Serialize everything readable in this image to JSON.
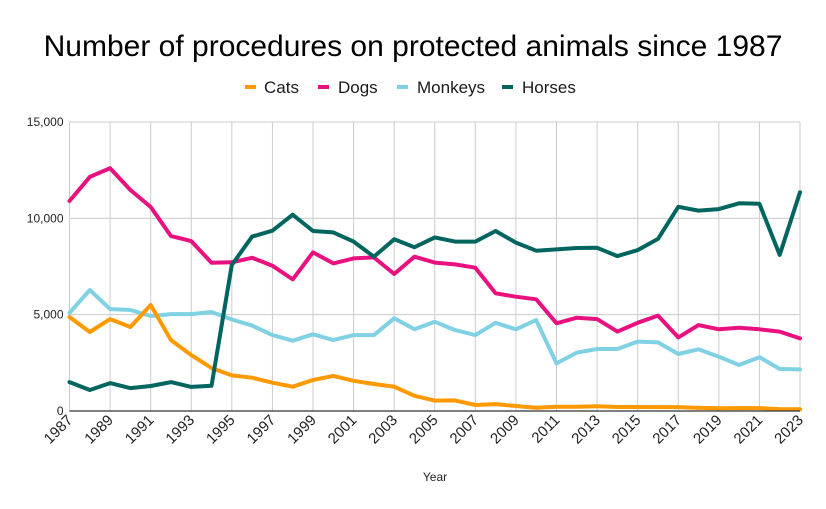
{
  "chart_data": {
    "type": "line",
    "title": "Number of procedures on protected animals since 1987",
    "xlabel": "Year",
    "ylabel": "",
    "ylim": [
      0,
      15000
    ],
    "yticks": [
      0,
      5000,
      10000,
      15000
    ],
    "ytick_labels": [
      "0",
      "5,000",
      "10,000",
      "15,000"
    ],
    "x": [
      1987,
      1988,
      1989,
      1990,
      1991,
      1992,
      1993,
      1994,
      1995,
      1996,
      1997,
      1998,
      1999,
      2000,
      2001,
      2002,
      2003,
      2004,
      2005,
      2006,
      2007,
      2008,
      2009,
      2010,
      2011,
      2012,
      2013,
      2014,
      2015,
      2016,
      2017,
      2018,
      2019,
      2020,
      2021,
      2022,
      2023
    ],
    "xtick_labels": [
      "1987",
      "1989",
      "1991",
      "1993",
      "1995",
      "1997",
      "1999",
      "2001",
      "2003",
      "2005",
      "2007",
      "2009",
      "2011",
      "2013",
      "2015",
      "2017",
      "2019",
      "2021",
      "2023"
    ],
    "grid": true,
    "legend_position": "top",
    "series": [
      {
        "name": "Cats",
        "color": "#ff9900",
        "values": [
          4880,
          4100,
          4770,
          4360,
          5500,
          3680,
          2900,
          2230,
          1850,
          1730,
          1470,
          1260,
          1610,
          1820,
          1570,
          1400,
          1260,
          790,
          540,
          550,
          310,
          360,
          260,
          170,
          220,
          220,
          250,
          210,
          210,
          200,
          200,
          160,
          140,
          150,
          150,
          100,
          90
        ]
      },
      {
        "name": "Dogs",
        "color": "#e8117f",
        "values": [
          10900,
          12150,
          12600,
          11470,
          10590,
          9080,
          8820,
          7690,
          7720,
          7950,
          7540,
          6830,
          8230,
          7660,
          7920,
          7970,
          7110,
          8010,
          7700,
          7610,
          7440,
          6110,
          5930,
          5800,
          4550,
          4840,
          4770,
          4120,
          4580,
          4950,
          3820,
          4460,
          4240,
          4320,
          4240,
          4120,
          3770
        ]
      },
      {
        "name": "Monkeys",
        "color": "#7fd1e3",
        "values": [
          5090,
          6280,
          5290,
          5240,
          4930,
          5030,
          5030,
          5140,
          4750,
          4430,
          3940,
          3650,
          3980,
          3680,
          3940,
          3940,
          4810,
          4240,
          4630,
          4200,
          3940,
          4580,
          4240,
          4720,
          2470,
          3030,
          3220,
          3220,
          3600,
          3560,
          2960,
          3200,
          2820,
          2390,
          2790,
          2180,
          2160
        ]
      },
      {
        "name": "Horses",
        "color": "#00655f",
        "values": [
          1500,
          1090,
          1450,
          1190,
          1300,
          1500,
          1250,
          1310,
          7580,
          9050,
          9360,
          10190,
          9340,
          9270,
          8790,
          8010,
          8910,
          8500,
          9010,
          8790,
          8790,
          9340,
          8740,
          8320,
          8390,
          8460,
          8470,
          8040,
          8350,
          8930,
          10600,
          10400,
          10480,
          10780,
          10760,
          8100,
          11350
        ]
      }
    ]
  }
}
